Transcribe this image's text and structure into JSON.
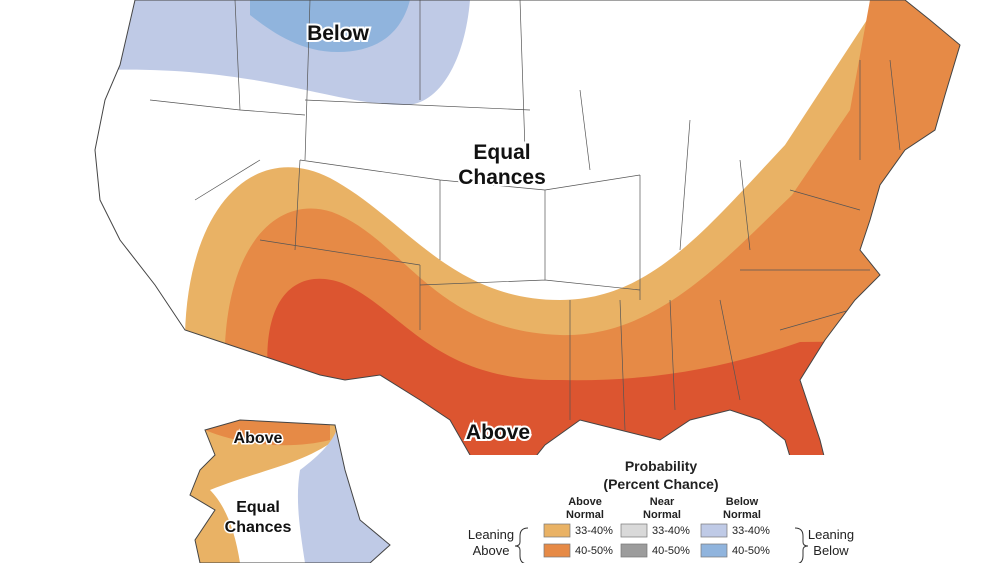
{
  "map_labels": [
    {
      "lines": [
        "Below"
      ]
    },
    {
      "lines": [
        "Equal",
        "Chances"
      ]
    },
    {
      "lines": [
        "Above"
      ]
    },
    {
      "lines": [
        "Above"
      ]
    },
    {
      "lines": [
        "Equal",
        "Chances"
      ]
    }
  ],
  "legend": {
    "title": [
      "Probability",
      "(Percent Chance)"
    ],
    "left_label": [
      "Leaning",
      "Above"
    ],
    "right_label": [
      "Leaning",
      "Below"
    ],
    "columns": [
      {
        "heading": [
          "Above",
          "Normal"
        ],
        "rows": [
          "33-40%",
          "40-50%"
        ],
        "colors": [
          "#e9b265",
          "#e68a46"
        ]
      },
      {
        "heading": [
          "Near",
          "Normal"
        ],
        "rows": [
          "33-40%",
          "40-50%"
        ],
        "colors": [
          "#d9d9d9",
          "#9c9c9c"
        ]
      },
      {
        "heading": [
          "Below",
          "Normal"
        ],
        "rows": [
          "33-40%",
          "40-50%"
        ],
        "colors": [
          "#bfcae6",
          "#90b4dd"
        ]
      }
    ]
  }
}
